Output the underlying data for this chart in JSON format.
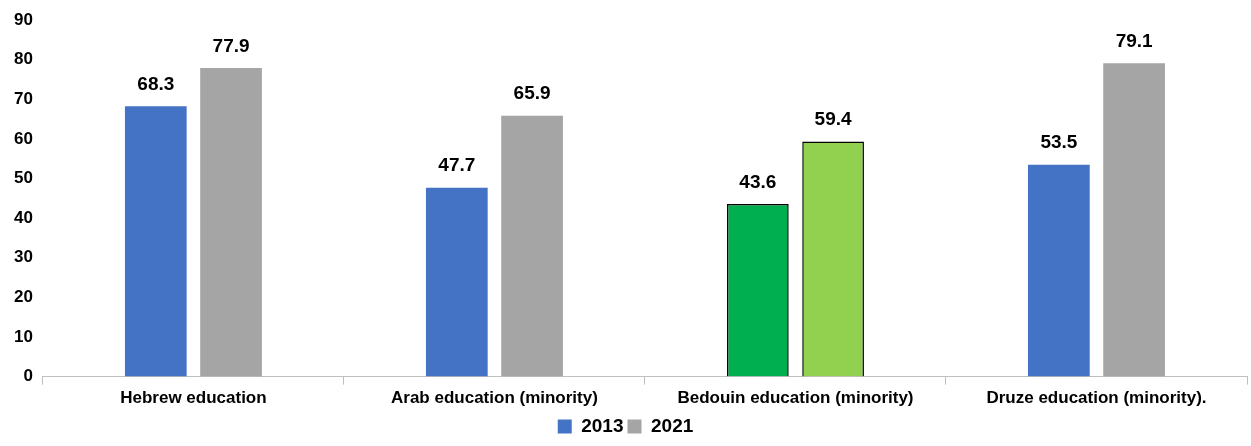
{
  "chart_data": {
    "type": "bar",
    "categories": [
      "Hebrew education",
      "Arab education (minority)",
      "Bedouin education (minority)",
      "Druze education (minority)."
    ],
    "series": [
      {
        "name": "2013",
        "color": "#4472c4",
        "colors": [
          "#4472c4",
          "#4472c4",
          "#00b050",
          "#4472c4"
        ],
        "values": [
          68.3,
          47.7,
          43.6,
          53.5
        ]
      },
      {
        "name": "2021",
        "color": "#a5a5a5",
        "colors": [
          "#a5a5a5",
          "#a5a5a5",
          "#92d050",
          "#a5a5a5"
        ],
        "values": [
          77.9,
          65.9,
          59.4,
          79.1
        ]
      }
    ],
    "ylim": [
      0,
      90
    ],
    "yticks": [
      0,
      10,
      20,
      30,
      40,
      50,
      60,
      70,
      80,
      90
    ],
    "grid": false,
    "legend": "bottom",
    "data_labels": true
  }
}
